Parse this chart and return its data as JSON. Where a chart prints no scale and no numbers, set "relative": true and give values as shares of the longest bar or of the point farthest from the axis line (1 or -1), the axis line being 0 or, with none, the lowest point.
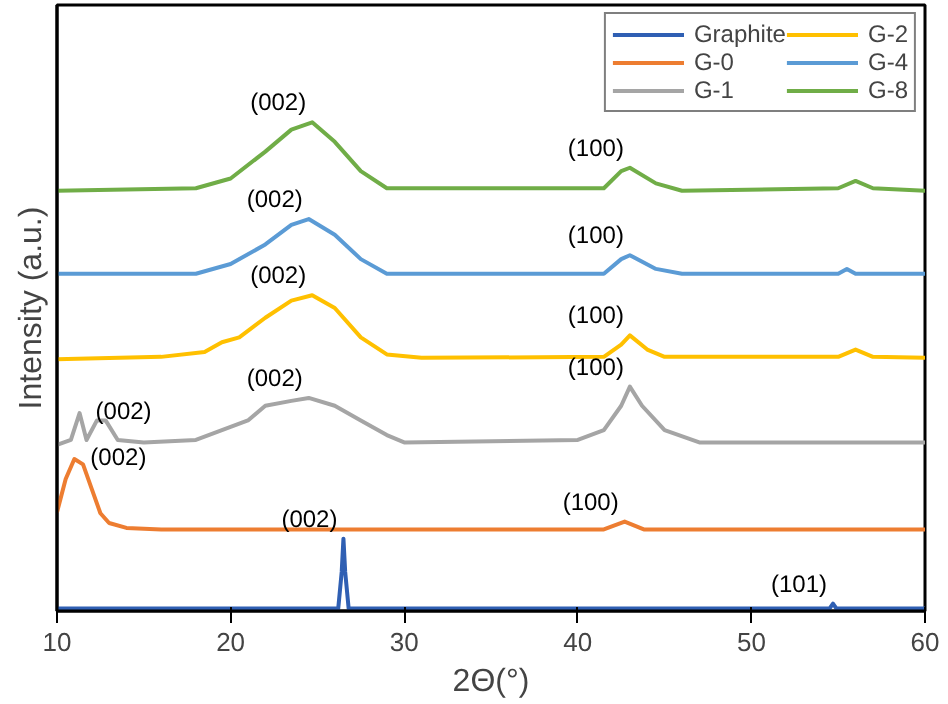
{
  "chart_data": {
    "type": "line",
    "relative": true,
    "xlabel": "2Θ(°)",
    "ylabel": "Intensity (a.u.)",
    "xlim": [
      10,
      60
    ],
    "xticks": [
      10,
      20,
      30,
      40,
      50,
      60
    ],
    "grid": false,
    "legend": "top right",
    "marker": "none",
    "line_style": "solid",
    "series": [
      {
        "name": "Graphite",
        "color": "#2f5fb3",
        "x": [
          10,
          26.2,
          26.4,
          26.5,
          26.6,
          26.8,
          54.5,
          54.7,
          54.9,
          60
        ],
        "values": [
          0.005,
          0.005,
          0.08,
          0.148,
          0.08,
          0.005,
          0.005,
          0.015,
          0.005,
          0.005
        ]
      },
      {
        "name": "G-0",
        "color": "#ed7d31",
        "x": [
          10,
          10.5,
          11.0,
          11.5,
          12,
          12.5,
          13,
          14,
          16,
          41.5,
          42.7,
          43.8,
          60
        ],
        "values": [
          0.202,
          0.27,
          0.311,
          0.3,
          0.25,
          0.2,
          0.18,
          0.17,
          0.167,
          0.167,
          0.183,
          0.167,
          0.167
        ]
      },
      {
        "name": "G-1",
        "color": "#a5a5a5",
        "x": [
          10,
          10.8,
          11.3,
          11.7,
          12.3,
          12.8,
          13.5,
          15,
          18,
          19.5,
          21,
          22,
          23.5,
          24.5,
          26,
          27.5,
          29,
          30,
          40,
          41.5,
          42.5,
          43,
          43.7,
          45,
          47,
          60
        ],
        "values": [
          0.34,
          0.35,
          0.405,
          0.35,
          0.39,
          0.39,
          0.35,
          0.345,
          0.35,
          0.37,
          0.39,
          0.42,
          0.43,
          0.436,
          0.42,
          0.39,
          0.36,
          0.345,
          0.35,
          0.37,
          0.42,
          0.459,
          0.42,
          0.37,
          0.345,
          0.345
        ]
      },
      {
        "name": "G-2",
        "color": "#ffc000",
        "x": [
          10,
          16,
          18.5,
          19.5,
          20.5,
          22,
          23.5,
          24.7,
          26,
          27.5,
          29,
          31,
          41.5,
          42.5,
          43,
          44,
          45,
          55,
          56,
          57,
          60
        ],
        "values": [
          0.515,
          0.52,
          0.53,
          0.55,
          0.56,
          0.6,
          0.635,
          0.646,
          0.62,
          0.56,
          0.525,
          0.518,
          0.52,
          0.545,
          0.564,
          0.535,
          0.52,
          0.52,
          0.535,
          0.52,
          0.518
        ]
      },
      {
        "name": "G-4",
        "color": "#5b9bd5",
        "x": [
          10,
          18,
          20,
          22,
          23.5,
          24.5,
          26,
          27.5,
          29,
          41.5,
          42.5,
          43,
          44.5,
          46,
          55,
          55.5,
          56,
          60
        ],
        "values": [
          0.69,
          0.69,
          0.71,
          0.75,
          0.79,
          0.802,
          0.77,
          0.72,
          0.69,
          0.69,
          0.72,
          0.728,
          0.7,
          0.69,
          0.69,
          0.7,
          0.69,
          0.69
        ]
      },
      {
        "name": "G-8",
        "color": "#70ad47",
        "x": [
          10,
          18,
          20,
          22,
          23.5,
          24.7,
          26,
          27.5,
          29,
          41.5,
          42.5,
          43,
          44.5,
          46,
          55,
          56,
          57,
          60
        ],
        "values": [
          0.86,
          0.865,
          0.885,
          0.94,
          0.985,
          1.0,
          0.96,
          0.9,
          0.865,
          0.865,
          0.9,
          0.907,
          0.875,
          0.86,
          0.865,
          0.88,
          0.865,
          0.86
        ]
      }
    ],
    "annotations": [
      {
        "text": "(002)",
        "x": 24.7,
        "y": 1.0
      },
      {
        "text": "(100)",
        "x": 43,
        "y": 0.907
      },
      {
        "text": "(002)",
        "x": 24.5,
        "y": 0.802
      },
      {
        "text": "(100)",
        "x": 43,
        "y": 0.728
      },
      {
        "text": "(002)",
        "x": 24.7,
        "y": 0.646
      },
      {
        "text": "(100)",
        "x": 43,
        "y": 0.564
      },
      {
        "text": "(002)",
        "x": 11.3,
        "y": 0.405
      },
      {
        "text": "(002)",
        "x": 24.5,
        "y": 0.436
      },
      {
        "text": "(100)",
        "x": 43,
        "y": 0.459
      },
      {
        "text": "(002)",
        "x": 11.0,
        "y": 0.311
      },
      {
        "text": "(100)",
        "x": 42.7,
        "y": 0.183
      },
      {
        "text": "(002)",
        "x": 26.5,
        "y": 0.148
      },
      {
        "text": "(101)",
        "x": 54.7,
        "y": 0.015
      }
    ]
  }
}
